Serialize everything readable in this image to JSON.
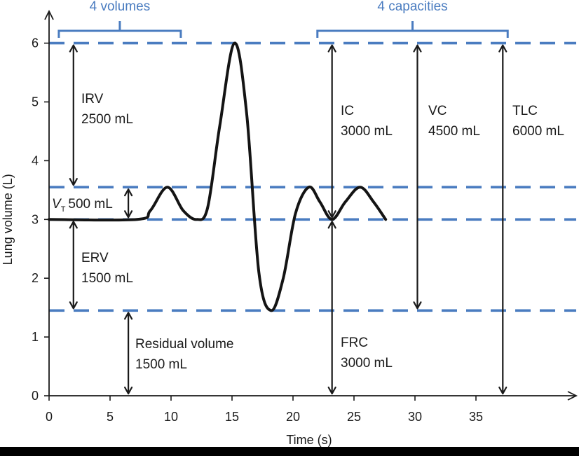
{
  "chart_data": {
    "type": "line",
    "xlabel": "Time (s)",
    "ylabel": "Lung volume (L)",
    "xlim": [
      0,
      42
    ],
    "ylim": [
      0,
      6.2
    ],
    "x_ticks": [
      0,
      5,
      10,
      15,
      20,
      25,
      30,
      35
    ],
    "y_ticks": [
      0,
      1,
      2,
      3,
      4,
      5,
      6
    ],
    "colors": {
      "accent": "#4a7cc0",
      "trace": "#141414",
      "axis": "#1a1a1a",
      "background": "#ffffff"
    },
    "reference_levels_L": [
      6.0,
      3.55,
      3.0,
      1.45
    ],
    "trace": {
      "x": [
        0,
        7.2,
        8.3,
        9.7,
        11.0,
        12.1,
        13.0,
        14.0,
        15.2,
        16.2,
        17.2,
        18.2,
        19.2,
        20.2,
        21.3,
        22.2,
        23.2,
        24.3,
        25.5,
        26.6,
        27.6
      ],
      "y": [
        3.0,
        3.0,
        3.15,
        3.55,
        3.15,
        3.0,
        3.2,
        4.6,
        6.0,
        4.8,
        2.1,
        1.45,
        2.0,
        3.1,
        3.55,
        3.3,
        3.0,
        3.3,
        3.55,
        3.3,
        3.0
      ]
    },
    "groups": {
      "volumes": {
        "title": "4 volumes",
        "x_from": 0.8,
        "x_to": 10.8
      },
      "capacities": {
        "title": "4 capacities",
        "x_from": 22.0,
        "x_to": 37.6
      }
    },
    "annotations": [
      {
        "id": "irv",
        "name": "IRV",
        "value": "2500 mL",
        "arrow_x": 2,
        "from": 3.55,
        "to": 6.0
      },
      {
        "id": "vt",
        "name_main": "V",
        "name_sub": "T",
        "value": "500 mL",
        "arrow_x": 6.5,
        "from": 3.0,
        "to": 3.55
      },
      {
        "id": "erv",
        "name": "ERV",
        "value": "1500 mL",
        "arrow_x": 2,
        "from": 1.45,
        "to": 3.0
      },
      {
        "id": "rv",
        "name": "Residual volume",
        "value": "1500 mL",
        "arrow_x": 6.5,
        "from": 0,
        "to": 1.45
      },
      {
        "id": "ic",
        "name": "IC",
        "value": "3000 mL",
        "arrow_x": 23.2,
        "from": 3.0,
        "to": 6.0
      },
      {
        "id": "frc",
        "name": "FRC",
        "value": "3000 mL",
        "arrow_x": 23.2,
        "from": 0,
        "to": 3.0
      },
      {
        "id": "vc",
        "name": "VC",
        "value": "4500 mL",
        "arrow_x": 30.2,
        "from": 1.45,
        "to": 6.0
      },
      {
        "id": "tlc",
        "name": "TLC",
        "value": "6000 mL",
        "arrow_x": 37.2,
        "from": 0,
        "to": 6.0
      }
    ]
  }
}
